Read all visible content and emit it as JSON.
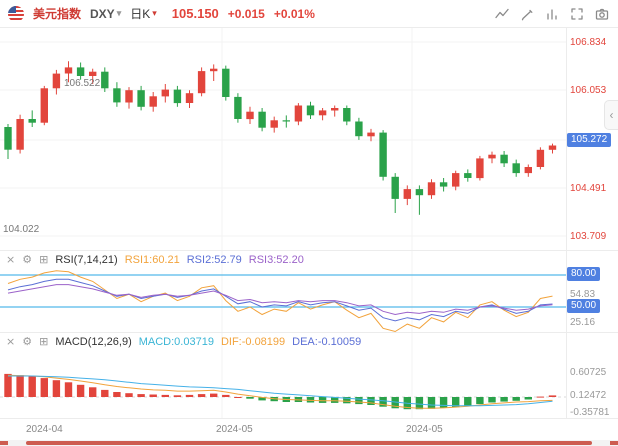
{
  "header": {
    "title": "美元指数",
    "symbol": "DXY",
    "symbol_caret": "▾",
    "period": "日K",
    "period_caret": "▾",
    "price": "105.150",
    "change": "+0.015",
    "change_pct": "+0.01%"
  },
  "main_chart": {
    "high_label": "106.522",
    "low_label": "104.022",
    "axis_labels": [
      "106.834",
      "106.053",
      "105.272",
      "104.491",
      "103.709"
    ],
    "tagged_label": "105.272"
  },
  "rsi_panel": {
    "close_icon": "×",
    "settings_icon": "⚙",
    "add_icon": "⊞",
    "label": "RSI(7,14,21)",
    "value1": "RSI1:60.21",
    "value2": "RSI2:52.79",
    "value3": "RSI3:52.20",
    "axis": {
      "line1_tag": "80.00",
      "tick1": "54.83",
      "line2_tag": "50.00",
      "tick2": "25.16"
    }
  },
  "macd_panel": {
    "close_icon": "×",
    "settings_icon": "⚙",
    "add_icon": "⊞",
    "label": "MACD(12,26,9)",
    "value1": "MACD:0.03719",
    "value2": "DIF:-0.08199",
    "value3": "DEA:-0.10059",
    "axis": [
      "0.60725",
      "0.12472",
      "-0.35781"
    ]
  },
  "time_axis": [
    "2024-04",
    "2024-05",
    "2024-05"
  ],
  "collapse_arrow": "‹",
  "colors": {
    "up": "#e2453c",
    "down": "#2aa24a",
    "price_tag_bg": "#4f80e1",
    "ref_line": "#55b9e9",
    "rsi1": "#f2a33c",
    "rsi2": "#5b6fd5",
    "rsi3": "#9b62c9",
    "dif": "#f2a33c",
    "dea": "#45b1e8",
    "macd_label": "#3ab5d5",
    "axis_text": "#e2453c",
    "scroll_thumb": "#cd5c50",
    "grid": "#f3f3f3"
  },
  "chart_data": {
    "type": "candlestick",
    "symbol": "DXY",
    "title": "美元指数 日K",
    "interval": "daily",
    "last_price": 105.15,
    "change": 0.015,
    "change_pct": "+0.01%",
    "visible_high": 106.522,
    "visible_low": 104.022,
    "y_axis_ticks": [
      106.834,
      106.053,
      105.272,
      104.491,
      103.709
    ],
    "x_labels": [
      "2024-04",
      "2024-05",
      "2024-05"
    ],
    "candles": [
      [
        105.45,
        105.5,
        104.93,
        105.08
      ],
      [
        105.08,
        105.65,
        105.02,
        105.58
      ],
      [
        105.58,
        105.72,
        105.45,
        105.52
      ],
      [
        105.52,
        106.12,
        105.48,
        106.08
      ],
      [
        106.08,
        106.38,
        105.98,
        106.32
      ],
      [
        106.32,
        106.522,
        106.18,
        106.42
      ],
      [
        106.42,
        106.5,
        106.22,
        106.28
      ],
      [
        106.28,
        106.4,
        106.15,
        106.35
      ],
      [
        106.35,
        106.42,
        106.02,
        106.08
      ],
      [
        106.08,
        106.18,
        105.78,
        105.85
      ],
      [
        105.85,
        106.1,
        105.75,
        106.05
      ],
      [
        106.05,
        106.12,
        105.72,
        105.78
      ],
      [
        105.78,
        106.02,
        105.7,
        105.95
      ],
      [
        105.95,
        106.15,
        105.85,
        106.06
      ],
      [
        106.06,
        106.12,
        105.78,
        105.84
      ],
      [
        105.84,
        106.05,
        105.76,
        106.0
      ],
      [
        106.0,
        106.42,
        105.95,
        106.36
      ],
      [
        106.36,
        106.47,
        106.2,
        106.4
      ],
      [
        106.4,
        106.45,
        105.88,
        105.94
      ],
      [
        105.94,
        106.0,
        105.52,
        105.58
      ],
      [
        105.58,
        105.78,
        105.5,
        105.7
      ],
      [
        105.7,
        105.76,
        105.38,
        105.44
      ],
      [
        105.44,
        105.62,
        105.36,
        105.56
      ],
      [
        105.56,
        105.64,
        105.44,
        105.54
      ],
      [
        105.54,
        105.84,
        105.48,
        105.8
      ],
      [
        105.8,
        105.86,
        105.58,
        105.64
      ],
      [
        105.64,
        105.76,
        105.56,
        105.72
      ],
      [
        105.72,
        105.8,
        105.62,
        105.76
      ],
      [
        105.76,
        105.8,
        105.48,
        105.54
      ],
      [
        105.54,
        105.6,
        105.24,
        105.3
      ],
      [
        105.3,
        105.42,
        105.22,
        105.36
      ],
      [
        105.36,
        105.4,
        104.58,
        104.64
      ],
      [
        104.64,
        104.7,
        104.05,
        104.28
      ],
      [
        104.28,
        104.5,
        104.18,
        104.44
      ],
      [
        104.44,
        104.5,
        104.022,
        104.34
      ],
      [
        104.34,
        104.6,
        104.28,
        104.55
      ],
      [
        104.55,
        104.62,
        104.4,
        104.48
      ],
      [
        104.48,
        104.74,
        104.42,
        104.7
      ],
      [
        104.7,
        104.76,
        104.56,
        104.62
      ],
      [
        104.62,
        104.98,
        104.58,
        104.94
      ],
      [
        104.94,
        105.05,
        104.86,
        105.0
      ],
      [
        105.0,
        105.06,
        104.8,
        104.86
      ],
      [
        104.86,
        104.92,
        104.64,
        104.7
      ],
      [
        104.7,
        104.84,
        104.64,
        104.8
      ],
      [
        104.8,
        105.12,
        104.76,
        105.08
      ],
      [
        105.08,
        105.18,
        105.02,
        105.15
      ]
    ],
    "indicators": {
      "rsi": {
        "params": [
          7,
          14,
          21
        ],
        "ref_lines": [
          80,
          50
        ],
        "axis_ticks": [
          80.0,
          54.83,
          50.0,
          25.16
        ],
        "series": [
          {
            "name": "RSI1",
            "last": 60.21,
            "values": [
              72,
              76,
              78,
              82,
              84,
              83,
              78,
              74,
              66,
              58,
              62,
              55,
              60,
              63,
              56,
              60,
              68,
              70,
              56,
              46,
              50,
              43,
              48,
              46,
              54,
              48,
              52,
              55,
              47,
              40,
              44,
              30,
              27,
              34,
              30,
              40,
              36,
              45,
              40,
              52,
              55,
              47,
              41,
              45,
              58,
              60.21
            ]
          },
          {
            "name": "RSI2",
            "last": 52.79,
            "values": [
              66,
              69,
              71,
              74,
              76,
              76,
              73,
              70,
              65,
              60,
              62,
              58,
              60,
              62,
              59,
              61,
              65,
              67,
              60,
              53,
              55,
              50,
              52,
              51,
              55,
              52,
              54,
              55,
              51,
              47,
              49,
              40,
              37,
              40,
              38,
              43,
              41,
              46,
              44,
              50,
              52,
              48,
              44,
              46,
              52,
              52.79
            ]
          },
          {
            "name": "RSI3",
            "last": 52.2,
            "values": [
              63,
              65,
              67,
              69,
              71,
              71,
              69,
              67,
              64,
              61,
              62,
              59,
              61,
              62,
              60,
              61,
              63,
              65,
              61,
              56,
              57,
              54,
              55,
              54,
              56,
              55,
              56,
              56,
              54,
              51,
              52,
              46,
              43,
              45,
              44,
              46,
              45,
              48,
              47,
              50,
              51,
              49,
              47,
              48,
              51,
              52.2
            ]
          }
        ]
      },
      "macd": {
        "params": [
          12,
          26,
          9
        ],
        "macd_last": 0.03719,
        "dif_last": -0.08199,
        "dea_last": -0.10059,
        "axis_ticks": [
          0.60725,
          0.12472,
          -0.35781
        ],
        "histogram": [
          0.55,
          0.52,
          0.49,
          0.45,
          0.4,
          0.35,
          0.29,
          0.23,
          0.17,
          0.12,
          0.09,
          0.07,
          0.06,
          0.05,
          0.04,
          0.05,
          0.07,
          0.08,
          0.05,
          0.0,
          -0.04,
          -0.08,
          -0.1,
          -0.12,
          -0.12,
          -0.13,
          -0.14,
          -0.14,
          -0.15,
          -0.17,
          -0.19,
          -0.23,
          -0.27,
          -0.29,
          -0.29,
          -0.28,
          -0.26,
          -0.24,
          -0.21,
          -0.17,
          -0.13,
          -0.11,
          -0.09,
          -0.06,
          0.01,
          0.03719
        ],
        "dif": [
          0.52,
          0.51,
          0.5,
          0.48,
          0.45,
          0.42,
          0.38,
          0.34,
          0.29,
          0.25,
          0.22,
          0.19,
          0.17,
          0.16,
          0.14,
          0.14,
          0.15,
          0.16,
          0.12,
          0.07,
          0.03,
          -0.01,
          -0.04,
          -0.06,
          -0.07,
          -0.08,
          -0.09,
          -0.09,
          -0.1,
          -0.12,
          -0.14,
          -0.18,
          -0.22,
          -0.25,
          -0.27,
          -0.27,
          -0.26,
          -0.24,
          -0.22,
          -0.19,
          -0.16,
          -0.14,
          -0.12,
          -0.11,
          -0.09,
          -0.08199
        ],
        "dea": [
          0.5,
          0.5,
          0.5,
          0.49,
          0.48,
          0.47,
          0.45,
          0.43,
          0.41,
          0.38,
          0.35,
          0.32,
          0.3,
          0.28,
          0.26,
          0.24,
          0.23,
          0.22,
          0.2,
          0.18,
          0.15,
          0.12,
          0.09,
          0.07,
          0.05,
          0.03,
          0.01,
          -0.01,
          -0.03,
          -0.05,
          -0.07,
          -0.09,
          -0.12,
          -0.15,
          -0.17,
          -0.19,
          -0.2,
          -0.21,
          -0.21,
          -0.21,
          -0.2,
          -0.19,
          -0.18,
          -0.16,
          -0.13,
          -0.10059
        ]
      }
    }
  }
}
